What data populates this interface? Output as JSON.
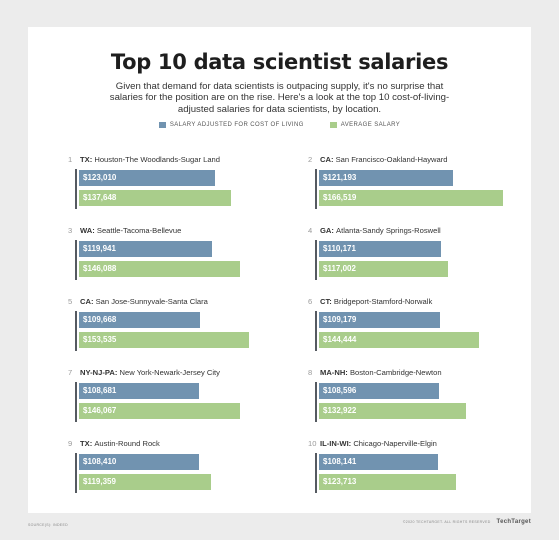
{
  "title": "Top 10 data scientist salaries",
  "subtitle": "Given that demand for data scientists is outpacing supply, it's no surprise that salaries for the position are on the rise. Here's a look at the top 10 cost-of-living-adjusted salaries for data scientists, by location.",
  "footer": {
    "source": "SOURCE(S): INDEED",
    "copyright": "©2020 TECHTARGET. ALL RIGHTS RESERVED",
    "brand": "TechTarget"
  },
  "colors": {
    "adjusted": "#7193b0",
    "average": "#a9cd8b"
  },
  "chart_data": {
    "type": "bar",
    "title": "Top 10 data scientist salaries",
    "subtitle": "Given that demand for data scientists is outpacing supply, it's no surprise that salaries for the position are on the rise. Here's a look at the top 10 cost-of-living-adjusted salaries for data scientists, by location.",
    "legend": [
      "SALARY ADJUSTED FOR COST OF LIVING",
      "AVERAGE SALARY"
    ],
    "legend_position": "top-center",
    "orientation": "horizontal",
    "categories": [
      {
        "rank": "1",
        "region": "TX:",
        "metro": "Houston-The Woodlands-Sugar Land"
      },
      {
        "rank": "2",
        "region": "CA:",
        "metro": "San Francisco-Oakland-Hayward"
      },
      {
        "rank": "3",
        "region": "WA:",
        "metro": "Seattle-Tacoma-Bellevue"
      },
      {
        "rank": "4",
        "region": "GA:",
        "metro": "Atlanta-Sandy Springs-Roswell"
      },
      {
        "rank": "5",
        "region": "CA:",
        "metro": "San Jose-Sunnyvale-Santa Clara"
      },
      {
        "rank": "6",
        "region": "CT:",
        "metro": "Bridgeport-Stamford-Norwalk"
      },
      {
        "rank": "7",
        "region": "NY-NJ-PA:",
        "metro": "New York-Newark-Jersey City"
      },
      {
        "rank": "8",
        "region": "MA-NH:",
        "metro": "Boston-Cambridge-Newton"
      },
      {
        "rank": "9",
        "region": "TX:",
        "metro": "Austin-Round Rock"
      },
      {
        "rank": "10",
        "region": "IL-IN-WI:",
        "metro": "Chicago-Naperville-Elgin"
      }
    ],
    "series": [
      {
        "name": "SALARY ADJUSTED FOR COST OF LIVING",
        "values": [
          123010,
          121193,
          119941,
          110171,
          109668,
          109179,
          108681,
          108596,
          108410,
          108141
        ],
        "labels": [
          "$123,010",
          "$121,193",
          "$119,941",
          "$110,171",
          "$109,668",
          "$109,179",
          "$108,681",
          "$108,596",
          "$108,410",
          "$108,141"
        ]
      },
      {
        "name": "AVERAGE SALARY",
        "values": [
          137648,
          166519,
          146088,
          117002,
          153535,
          144444,
          146067,
          132922,
          119359,
          123713
        ],
        "labels": [
          "$137,648",
          "$166,519",
          "$146,088",
          "$117,002",
          "$153,535",
          "$144,444",
          "$146,067",
          "$132,922",
          "$119,359",
          "$123,713"
        ]
      }
    ],
    "xlim": [
      0,
      166519
    ]
  }
}
